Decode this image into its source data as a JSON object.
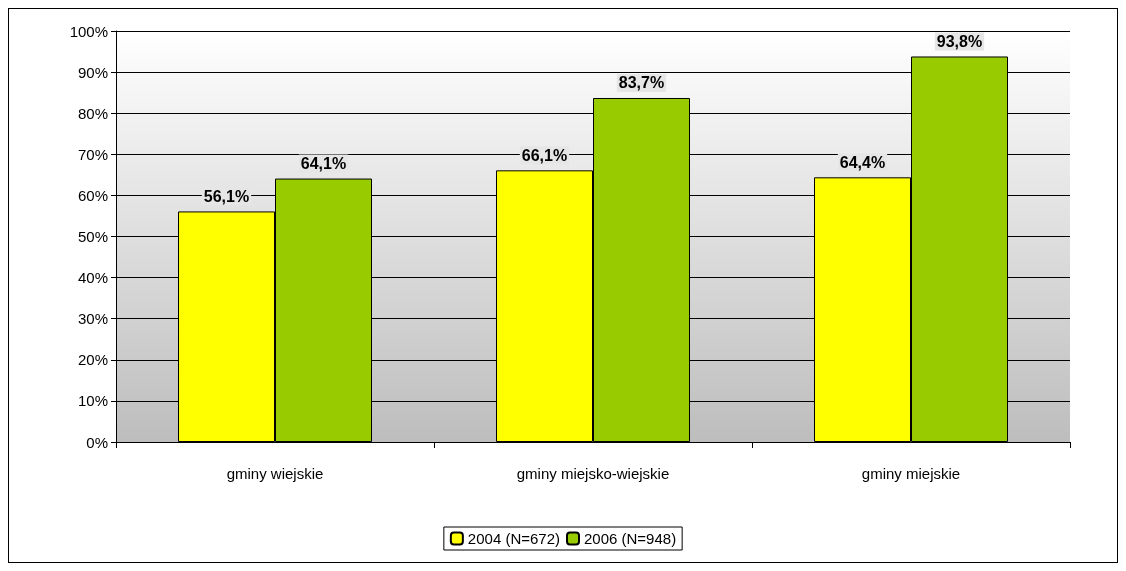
{
  "chart_data": {
    "type": "bar",
    "categories": [
      "gminy wiejskie",
      "gminy miejsko-wiejskie",
      "gminy miejskie"
    ],
    "series": [
      {
        "name": "2004 (N=672)",
        "color": "#ffff00",
        "values": [
          56.1,
          66.1,
          64.4
        ],
        "value_labels": [
          "56,1%",
          "66,1%",
          "64,4%"
        ]
      },
      {
        "name": "2006 (N=948)",
        "color": "#99cc00",
        "values": [
          64.1,
          83.7,
          93.8
        ],
        "value_labels": [
          "64,1%",
          "83,7%",
          "93,8%"
        ]
      }
    ],
    "ylim": [
      0,
      100
    ],
    "yticks": [
      {
        "value": 0,
        "label": "0%"
      },
      {
        "value": 10,
        "label": "10%"
      },
      {
        "value": 20,
        "label": "20%"
      },
      {
        "value": 30,
        "label": "30%"
      },
      {
        "value": 40,
        "label": "40%"
      },
      {
        "value": 50,
        "label": "50%"
      },
      {
        "value": 60,
        "label": "60%"
      },
      {
        "value": 70,
        "label": "70%"
      },
      {
        "value": 80,
        "label": "80%"
      },
      {
        "value": 90,
        "label": "90%"
      },
      {
        "value": 100,
        "label": "100%"
      }
    ],
    "grid": "y",
    "legend": "bottom"
  }
}
